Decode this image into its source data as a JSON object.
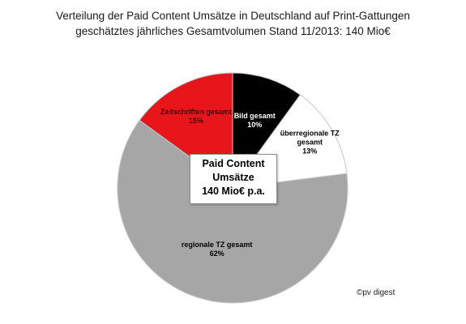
{
  "title": "Verteilung der Paid Content Umsätze in Deutschland auf Print-Gattungen",
  "subtitle": "geschätztes jährliches Gesamtvolumen Stand 11/2013: 140 Mio€",
  "center_label": {
    "line1": "Paid Content",
    "line2": "Umsätze",
    "line3": "140 Mio€ p.a."
  },
  "credit": "©pv digest",
  "chart_data": {
    "type": "pie",
    "title": "Verteilung der Paid Content Umsätze in Deutschland auf Print-Gattungen",
    "subtitle": "geschätztes jährliches Gesamtvolumen Stand 11/2013: 140 Mio€",
    "slices": [
      {
        "label_lines": [
          "Bild gesamt"
        ],
        "value": 10,
        "value_label": "10%",
        "color": "#000000",
        "label_color": "#ffffff"
      },
      {
        "label_lines": [
          "überregionale TZ",
          "gesamt"
        ],
        "value": 13,
        "value_label": "13%",
        "color": "#ffffff",
        "label_color": "#000000"
      },
      {
        "label_lines": [
          "regionale TZ gesamt"
        ],
        "value": 62,
        "value_label": "62%",
        "color": "#a6a6a6",
        "label_color": "#000000"
      },
      {
        "label_lines": [
          "Zeitschriften gesamt"
        ],
        "value": 15,
        "value_label": "15%",
        "color": "#e8161a",
        "label_color": "#3a0000"
      }
    ],
    "start_angle_deg": 0,
    "direction": "clockwise",
    "legend": "none"
  }
}
